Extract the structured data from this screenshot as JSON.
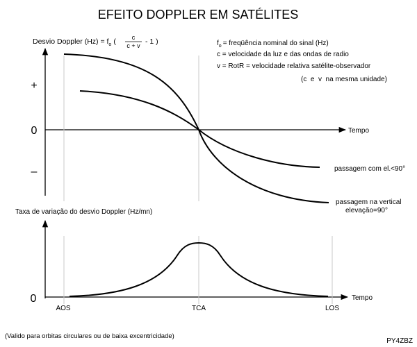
{
  "title": "EFEITO DOPPLER EM SATÉLITES",
  "top_chart": {
    "ylabel_prefix": "Desvio Doppler (Hz) = f",
    "ylabel_sub": "o",
    "ylabel_open": "(",
    "frac_num": "c",
    "frac_den": "c + v",
    "ylabel_tail": "- 1 )",
    "plus": "+",
    "zero": "0",
    "minus": "–",
    "time_label": "Tempo",
    "curve_low_label": "passagem com el.<90°",
    "curve_vertical_label_1": "passagem na vertical",
    "curve_vertical_label_2": "elevação=90°"
  },
  "legend": {
    "fo_sym": "f",
    "fo_sub": "o",
    "fo_text": "= freqüência nominal do sinal (Hz)",
    "c_line": "c = velocidade da luz e das ondas de radio",
    "v_line": "v = RotR = velocidade relativa satélite-observador",
    "units_line": "(c  e  v  na mesma unidade)"
  },
  "bottom_chart": {
    "ylabel": "Taxa de variação do desvio Doppler (Hz/mn)",
    "zero": "0",
    "time_label": "Tempo",
    "aos": "AOS",
    "tca": "TCA",
    "los": "LOS"
  },
  "footnote": "(Valido para orbitas circulares ou de baixa excentricidade)",
  "signature": "PY4ZBZ"
}
